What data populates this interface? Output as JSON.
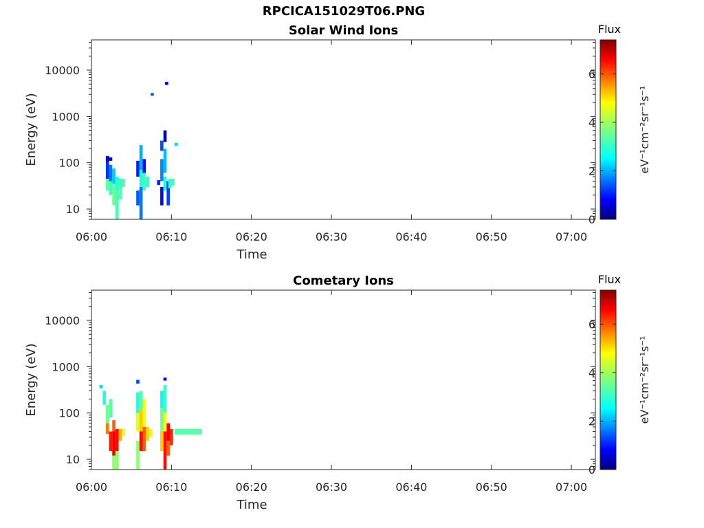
{
  "page": {
    "title": "RPCICA151029T06.PNG"
  },
  "colormap": {
    "name": "jet",
    "colors": [
      "#00007f",
      "#0000ff",
      "#007fff",
      "#00ffff",
      "#7fff7f",
      "#ffff00",
      "#ff7f00",
      "#ff0000",
      "#7f0000"
    ]
  },
  "chart_data": [
    {
      "type": "heatmap",
      "title": "Solar Wind Ions",
      "xlabel": "Time",
      "ylabel": "Energy (eV)",
      "yscale": "log",
      "xlim": [
        "06:00",
        "07:03"
      ],
      "ylim": [
        6,
        45000
      ],
      "x_ticks": [
        "06:00",
        "06:10",
        "06:20",
        "06:30",
        "06:40",
        "06:50",
        "07:00"
      ],
      "y_ticks": [
        10,
        100,
        1000,
        10000
      ],
      "y_tick_labels": [
        "10",
        "100",
        "1000",
        "10000"
      ],
      "colorbar": {
        "title": "Flux",
        "label": "eV⁻¹cm⁻²sr⁻¹s⁻¹",
        "range": [
          0,
          7.4
        ],
        "ticks": [
          0,
          2,
          4,
          6
        ]
      },
      "cells": [
        {
          "t": "06:01.8",
          "e": [
            100,
            140
          ],
          "v": 0.7
        },
        {
          "t": "06:01.8",
          "e": [
            45,
            100
          ],
          "v": 1.3
        },
        {
          "t": "06:01.8",
          "e": [
            25,
            45
          ],
          "v": 3.5
        },
        {
          "t": "06:02.2",
          "e": [
            110,
            130
          ],
          "v": 0.3
        },
        {
          "t": "06:02.2",
          "e": [
            40,
            90
          ],
          "v": 1.8
        },
        {
          "t": "06:02.2",
          "e": [
            20,
            40
          ],
          "v": 3.2
        },
        {
          "t": "06:02.6",
          "e": [
            35,
            75
          ],
          "v": 2.4
        },
        {
          "t": "06:02.6",
          "e": [
            12,
            35
          ],
          "v": 3.6
        },
        {
          "t": "06:03.0",
          "e": [
            25,
            50
          ],
          "v": 3.0
        },
        {
          "t": "06:03.0",
          "e": [
            6,
            25
          ],
          "v": 3.3
        },
        {
          "t": "06:03.4",
          "e": [
            30,
            45
          ],
          "v": 3.2
        },
        {
          "t": "06:03.4",
          "e": [
            16,
            30
          ],
          "v": 3.4
        },
        {
          "t": "06:03.8",
          "e": [
            30,
            45
          ],
          "v": 3.4
        },
        {
          "t": "06:05.6",
          "e": [
            50,
            110
          ],
          "v": 1.2
        },
        {
          "t": "06:05.6",
          "e": [
            12,
            25
          ],
          "v": 1.6
        },
        {
          "t": "06:06.0",
          "e": [
            70,
            240
          ],
          "v": 2.2
        },
        {
          "t": "06:06.0",
          "e": [
            30,
            70
          ],
          "v": 3.0
        },
        {
          "t": "06:06.0",
          "e": [
            6,
            30
          ],
          "v": 1.8
        },
        {
          "t": "06:06.4",
          "e": [
            60,
            120
          ],
          "v": 1.0
        },
        {
          "t": "06:06.4",
          "e": [
            25,
            60
          ],
          "v": 3.3
        },
        {
          "t": "06:06.8",
          "e": [
            30,
            50
          ],
          "v": 3.1
        },
        {
          "t": "06:07.4",
          "e": [
            2800,
            3200
          ],
          "v": 1.6
        },
        {
          "t": "06:08.2",
          "e": [
            33,
            42
          ],
          "v": 1.2
        },
        {
          "t": "06:08.6",
          "e": [
            180,
            300
          ],
          "v": 1.5
        },
        {
          "t": "06:08.6",
          "e": [
            40,
            120
          ],
          "v": 1.9
        },
        {
          "t": "06:08.6",
          "e": [
            12,
            30
          ],
          "v": 1.0
        },
        {
          "t": "06:09.0",
          "e": [
            280,
            500
          ],
          "v": 0.5
        },
        {
          "t": "06:09.0",
          "e": [
            60,
            200
          ],
          "v": 2.3
        },
        {
          "t": "06:09.0",
          "e": [
            25,
            50
          ],
          "v": 3.0
        },
        {
          "t": "06:09.2",
          "e": [
            4800,
            5600
          ],
          "v": 0.7
        },
        {
          "t": "06:09.4",
          "e": [
            12,
            40
          ],
          "v": 1.4
        },
        {
          "t": "06:09.6",
          "e": [
            28,
            45
          ],
          "v": 3.2
        },
        {
          "t": "06:10.0",
          "e": [
            32,
            45
          ],
          "v": 3.3
        },
        {
          "t": "06:10.4",
          "e": [
            230,
            270
          ],
          "v": 2.5
        }
      ]
    },
    {
      "type": "heatmap",
      "title": "Cometary Ions",
      "xlabel": "Time",
      "ylabel": "Energy (eV)",
      "yscale": "log",
      "xlim": [
        "06:00",
        "07:03"
      ],
      "ylim": [
        6,
        45000
      ],
      "x_ticks": [
        "06:00",
        "06:10",
        "06:20",
        "06:30",
        "06:40",
        "06:50",
        "07:00"
      ],
      "y_ticks": [
        10,
        100,
        1000,
        10000
      ],
      "y_tick_labels": [
        "10",
        "100",
        "1000",
        "10000"
      ],
      "colorbar": {
        "title": "Flux",
        "label": "eV⁻¹cm⁻²sr⁻¹s⁻¹",
        "range": [
          0,
          7.4
        ],
        "ticks": [
          0,
          2,
          4,
          6
        ]
      },
      "cells": [
        {
          "t": "06:01.0",
          "e": [
            340,
            400
          ],
          "v": 2.5
        },
        {
          "t": "06:01.4",
          "e": [
            150,
            300
          ],
          "v": 3.0
        },
        {
          "t": "06:01.8",
          "e": [
            60,
            150
          ],
          "v": 3.6
        },
        {
          "t": "06:01.8",
          "e": [
            35,
            60
          ],
          "v": 5.6
        },
        {
          "t": "06:02.2",
          "e": [
            80,
            200
          ],
          "v": 3.4
        },
        {
          "t": "06:02.2",
          "e": [
            15,
            40
          ],
          "v": 6.3
        },
        {
          "t": "06:02.6",
          "e": [
            40,
            70
          ],
          "v": 5.8
        },
        {
          "t": "06:02.6",
          "e": [
            12,
            40
          ],
          "v": 6.6
        },
        {
          "t": "06:02.6",
          "e": [
            6,
            12
          ],
          "v": 3.8
        },
        {
          "t": "06:03.0",
          "e": [
            15,
            45
          ],
          "v": 6.4
        },
        {
          "t": "06:03.0",
          "e": [
            6,
            15
          ],
          "v": 3.8
        },
        {
          "t": "06:03.4",
          "e": [
            25,
            45
          ],
          "v": 5.2
        },
        {
          "t": "06:03.8",
          "e": [
            32,
            45
          ],
          "v": 4.4
        },
        {
          "t": "06:05.6",
          "e": [
            430,
            520
          ],
          "v": 1.5
        },
        {
          "t": "06:05.6",
          "e": [
            100,
            280
          ],
          "v": 3.0
        },
        {
          "t": "06:05.6",
          "e": [
            40,
            100
          ],
          "v": 4.4
        },
        {
          "t": "06:05.6",
          "e": [
            6,
            25
          ],
          "v": 3.8
        },
        {
          "t": "06:06.0",
          "e": [
            120,
            300
          ],
          "v": 3.4
        },
        {
          "t": "06:06.0",
          "e": [
            40,
            120
          ],
          "v": 5.0
        },
        {
          "t": "06:06.0",
          "e": [
            15,
            40
          ],
          "v": 6.4
        },
        {
          "t": "06:06.4",
          "e": [
            50,
            200
          ],
          "v": 4.6
        },
        {
          "t": "06:06.4",
          "e": [
            15,
            50
          ],
          "v": 5.8
        },
        {
          "t": "06:06.8",
          "e": [
            25,
            50
          ],
          "v": 5.0
        },
        {
          "t": "06:07.2",
          "e": [
            30,
            45
          ],
          "v": 4.4
        },
        {
          "t": "06:08.6",
          "e": [
            130,
            300
          ],
          "v": 2.8
        },
        {
          "t": "06:08.6",
          "e": [
            40,
            130
          ],
          "v": 3.6
        },
        {
          "t": "06:08.6",
          "e": [
            15,
            40
          ],
          "v": 5.0
        },
        {
          "t": "06:09.0",
          "e": [
            500,
            580
          ],
          "v": 0.8
        },
        {
          "t": "06:09.0",
          "e": [
            100,
            400
          ],
          "v": 3.2
        },
        {
          "t": "06:09.0",
          "e": [
            40,
            100
          ],
          "v": 4.6
        },
        {
          "t": "06:09.0",
          "e": [
            6,
            40
          ],
          "v": 6.4
        },
        {
          "t": "06:09.4",
          "e": [
            25,
            60
          ],
          "v": 6.6
        },
        {
          "t": "06:09.4",
          "e": [
            12,
            25
          ],
          "v": 5.8
        },
        {
          "t": "06:09.8",
          "e": [
            20,
            45
          ],
          "v": 6.2
        },
        {
          "t": "06:10.4",
          "e": [
            34,
            45
          ],
          "v": 3.4
        },
        {
          "t": "06:13.0",
          "e": [
            34,
            45
          ],
          "v": 3.6
        }
      ]
    }
  ]
}
